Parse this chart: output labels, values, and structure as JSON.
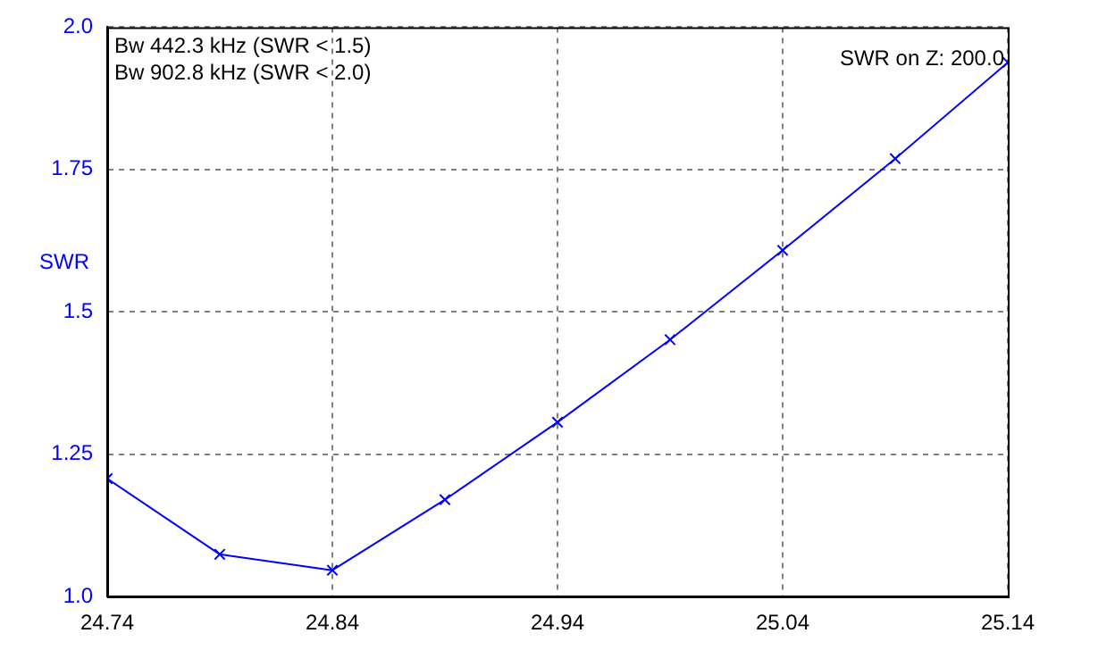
{
  "chart_data": {
    "type": "line",
    "ylabel": "SWR",
    "annotations": [
      "Bw 442.3 kHz (SWR < 1.5)",
      "Bw 902.8 kHz (SWR < 2.0)",
      "SWR on Z: 200.0"
    ],
    "x": [
      24.74,
      24.79,
      24.84,
      24.89,
      24.94,
      24.99,
      25.04,
      25.09,
      25.14
    ],
    "values": [
      1.207,
      1.074,
      1.046,
      1.17,
      1.306,
      1.451,
      1.608,
      1.769,
      1.938
    ],
    "color": "#0000ff",
    "xlim": [
      24.74,
      25.14
    ],
    "xticks": [
      24.74,
      24.84,
      24.94,
      25.04,
      25.14
    ],
    "ylim": [
      1.0,
      2.0
    ],
    "yticks": [
      {
        "value": 1.0,
        "label": "1.0"
      },
      1.25,
      1.5,
      1.75,
      {
        "value": 2.0,
        "label": "2.0"
      }
    ],
    "grid": true,
    "marker": "cross",
    "line_style": "solid"
  }
}
